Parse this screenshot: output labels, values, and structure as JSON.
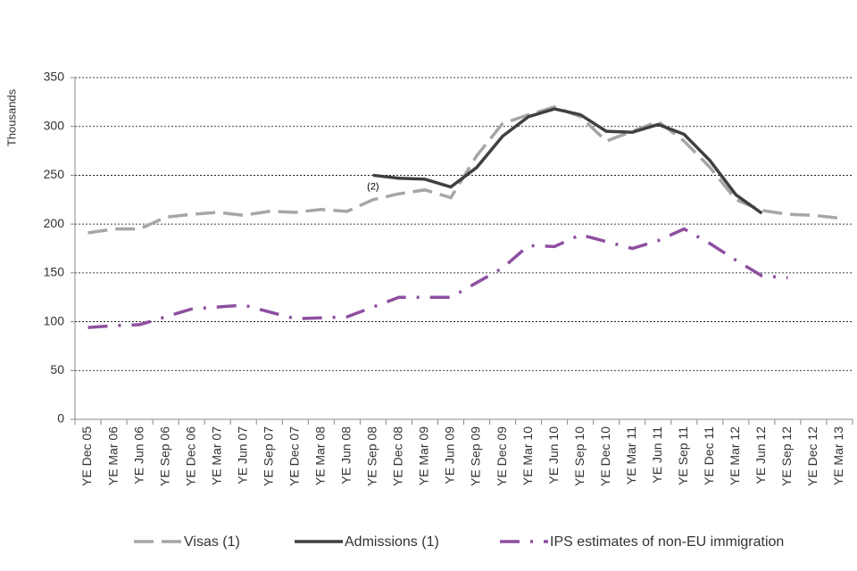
{
  "chart_data": {
    "type": "line",
    "y_label": "Thousands",
    "categories": [
      "YE Dec 05",
      "YE Mar 06",
      "YE Jun 06",
      "YE Sep 06",
      "YE Dec 06",
      "YE Mar 07",
      "YE Jun 07",
      "YE Sep 07",
      "YE Dec 07",
      "YE Mar 08",
      "YE Jun 08",
      "YE Sep 08",
      "YE Dec 08",
      "YE Mar 09",
      "YE Jun 09",
      "YE Sep 09",
      "YE Dec 09",
      "YE Mar 10",
      "YE Jun 10",
      "YE Sep 10",
      "YE Dec 10",
      "YE Mar 11",
      "YE Jun 11",
      "YE Sep 11",
      "YE Dec 11",
      "YE Mar 12",
      "YE Jun 12",
      "YE Sep 12",
      "YE Dec 12",
      "YE Mar 13"
    ],
    "series": [
      {
        "name": "Visas (1)",
        "color": "#a6a6a6",
        "dash": "dashed",
        "values": [
          191,
          195,
          195,
          207,
          210,
          212,
          209,
          213,
          212,
          215,
          213,
          225,
          231,
          235,
          227,
          270,
          303,
          312,
          320,
          310,
          285,
          295,
          305,
          285,
          258,
          225,
          214,
          210,
          209,
          206
        ]
      },
      {
        "name": "Admissions (1)",
        "color": "#404040",
        "dash": "solid",
        "values": [
          null,
          null,
          null,
          null,
          null,
          null,
          null,
          null,
          null,
          null,
          null,
          250,
          247,
          246,
          238,
          258,
          290,
          310,
          318,
          312,
          295,
          294,
          302,
          292,
          265,
          230,
          211,
          null,
          null,
          null
        ]
      },
      {
        "name": "IPS estimates of non-EU immigration",
        "color": "#8e4fa0",
        "dash": "dashdot",
        "values": [
          94,
          96,
          97,
          105,
          113,
          115,
          117,
          110,
          103,
          104,
          105,
          115,
          125,
          125,
          125,
          140,
          155,
          178,
          177,
          189,
          182,
          175,
          183,
          195,
          180,
          163,
          147,
          145,
          null,
          null
        ]
      }
    ],
    "annotations": [
      {
        "text": "(2)",
        "category": "YE Sep 08"
      }
    ],
    "ylim": [
      0,
      350
    ],
    "yticks": [
      0,
      50,
      100,
      150,
      200,
      250,
      300,
      350
    ],
    "grid": true,
    "legend": "bottom"
  }
}
